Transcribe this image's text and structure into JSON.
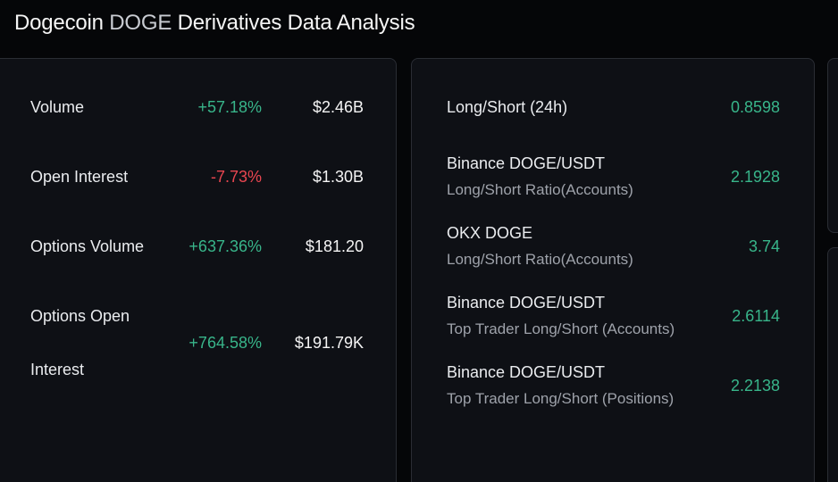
{
  "header": {
    "title_prefix": "Dogecoin",
    "title_symbol": "DOGE",
    "title_suffix": "Derivatives Data Analysis"
  },
  "overview": {
    "rows": [
      {
        "label": "Volume",
        "label_line2": "",
        "change": "+57.18%",
        "change_direction": "up",
        "value": "$2.46B"
      },
      {
        "label": "Open Interest",
        "label_line2": "",
        "change": "-7.73%",
        "change_direction": "down",
        "value": "$1.30B"
      },
      {
        "label": "Options Volume",
        "label_line2": "",
        "change": "+637.36%",
        "change_direction": "up",
        "value": "$181.20"
      },
      {
        "label": "Options Open",
        "label_line2": "Interest",
        "change": "+764.58%",
        "change_direction": "up",
        "value": "$191.79K"
      }
    ]
  },
  "long_short": {
    "rows": [
      {
        "title": "Long/Short (24h)",
        "subtitle": "",
        "value": "0.8598"
      },
      {
        "title": "Binance DOGE/USDT",
        "subtitle": "Long/Short Ratio(Accounts)",
        "value": "2.1928"
      },
      {
        "title": "OKX DOGE",
        "subtitle": "Long/Short Ratio(Accounts)",
        "value": "3.74"
      },
      {
        "title": "Binance DOGE/USDT",
        "subtitle": "Top Trader Long/Short (Accounts)",
        "value": "2.6114"
      },
      {
        "title": "Binance DOGE/USDT",
        "subtitle": "Top Trader Long/Short (Positions)",
        "value": "2.2138"
      }
    ]
  },
  "colors": {
    "positive": "#38b58a",
    "negative": "#e94650",
    "card_background": "#0e1015",
    "page_background": "#050608"
  }
}
